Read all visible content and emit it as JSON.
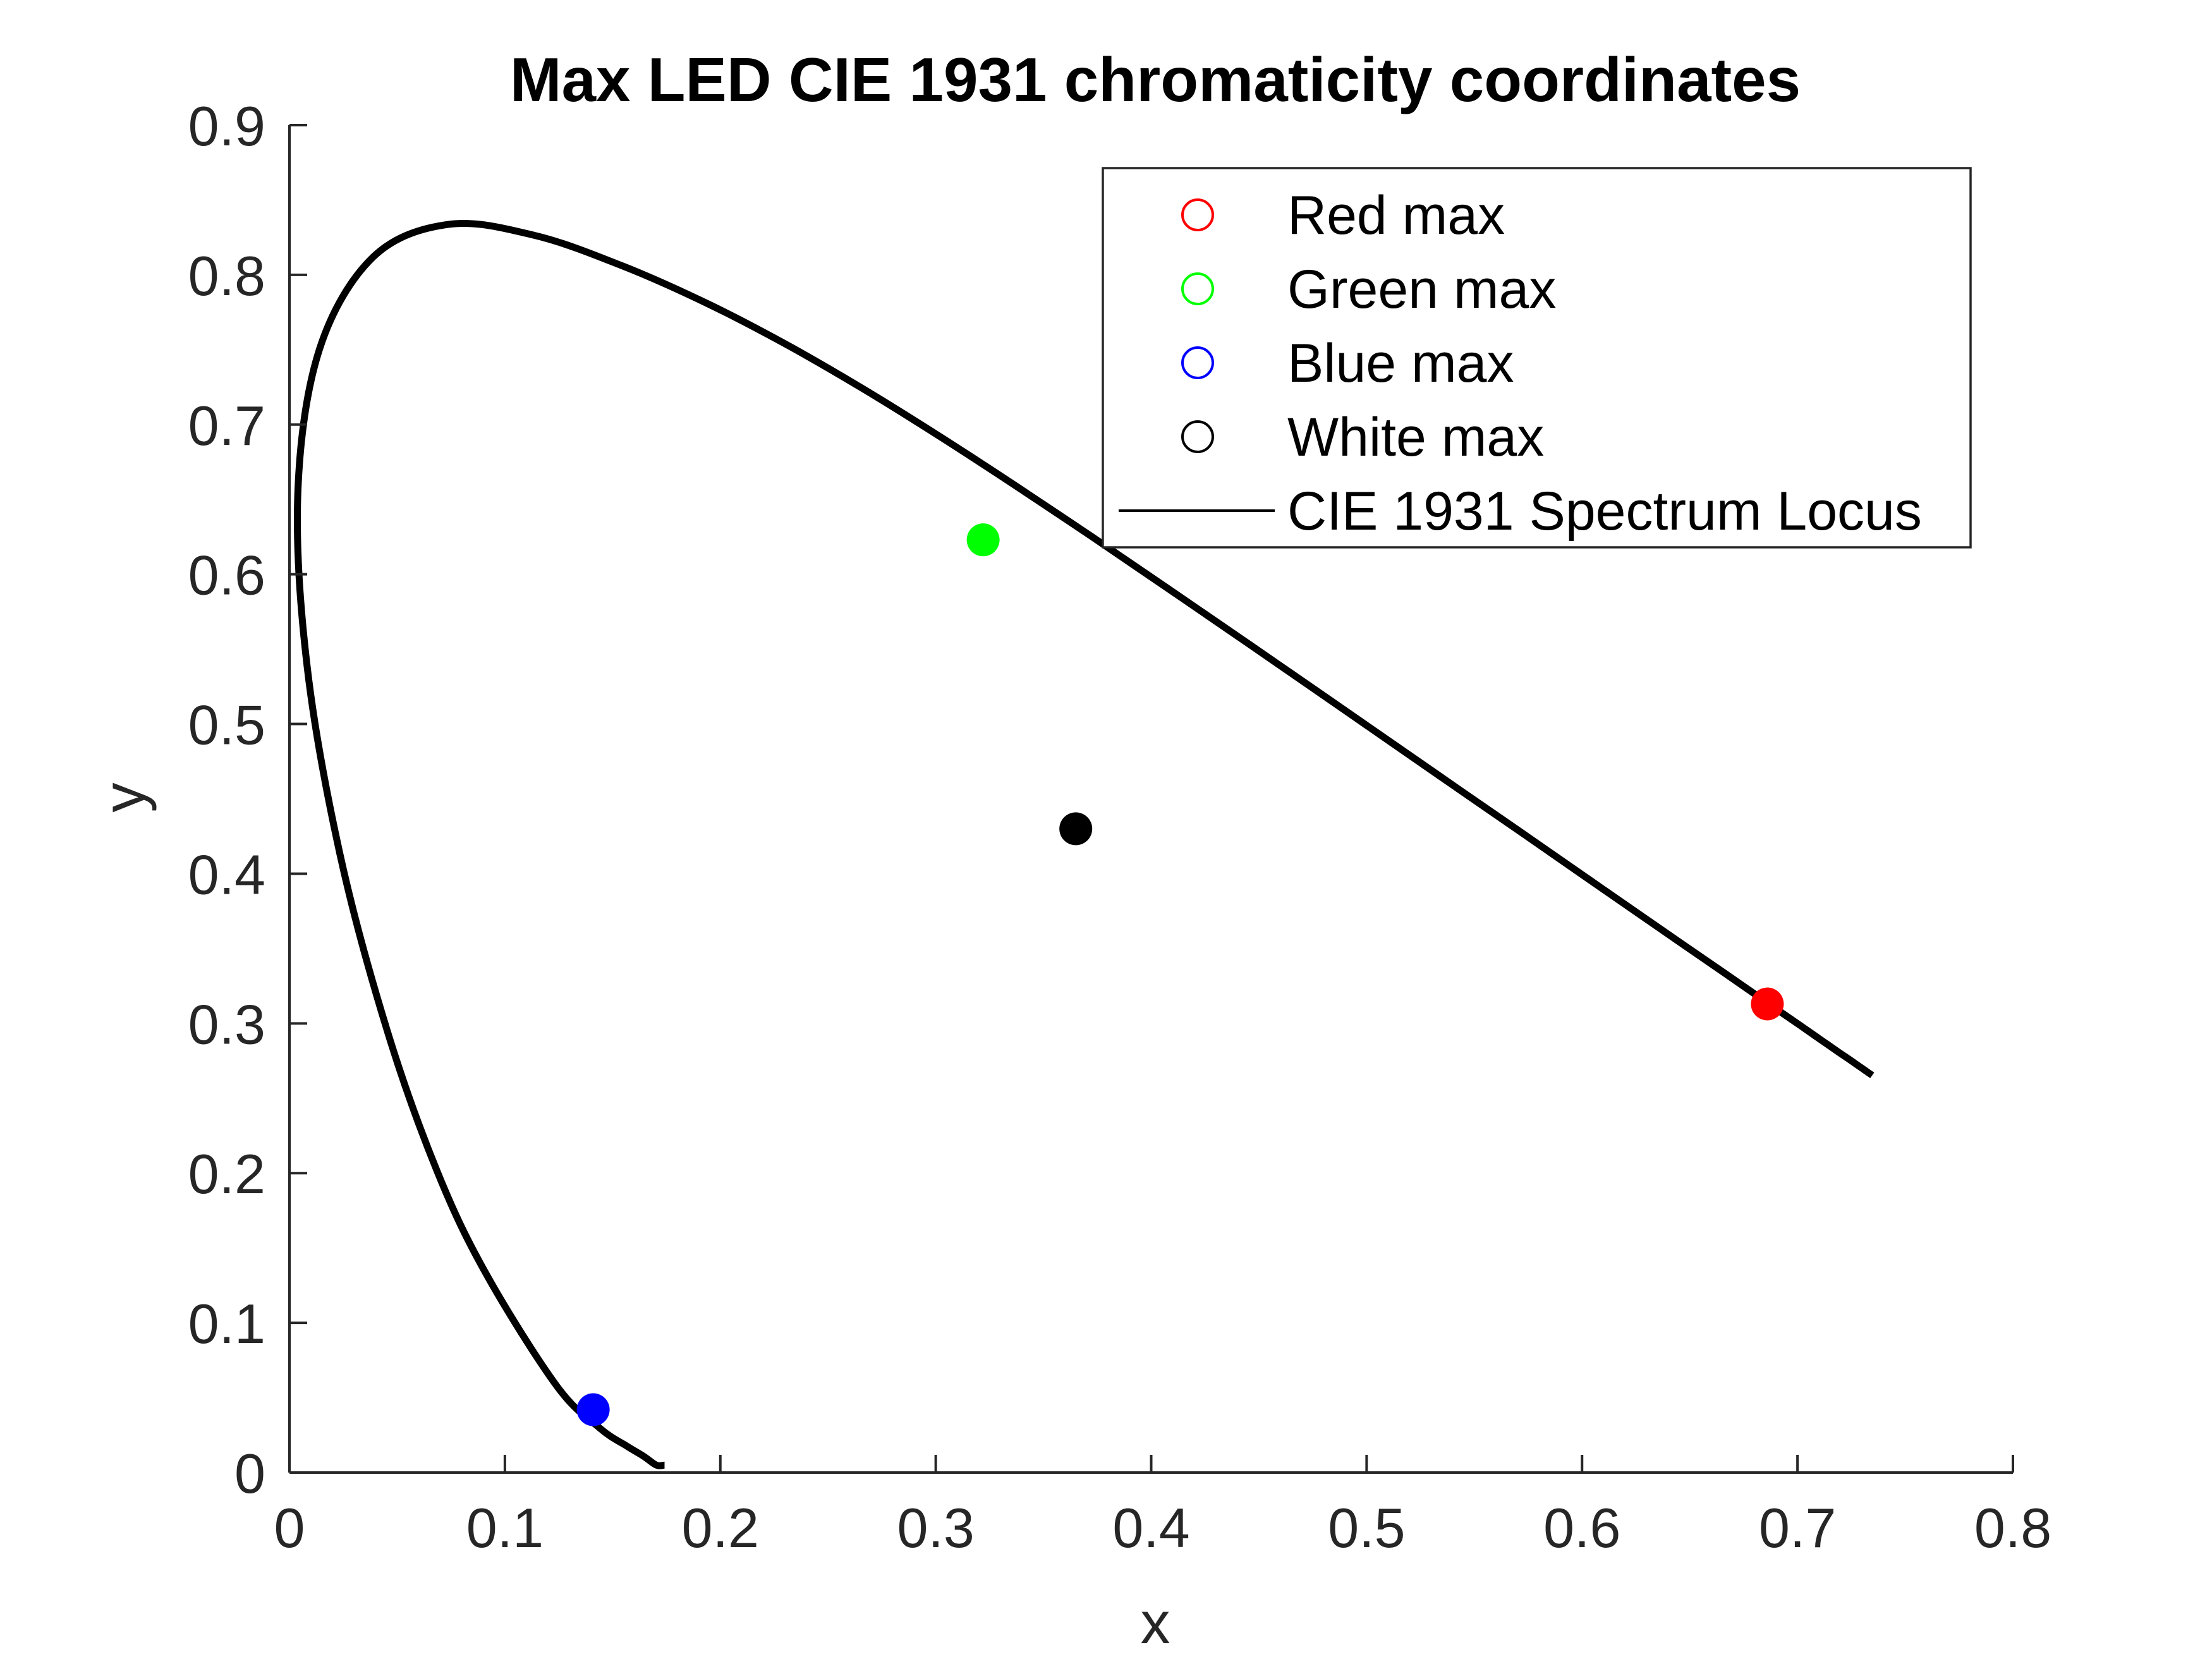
{
  "chart_data": {
    "type": "scatter",
    "title": "Max LED CIE 1931 chromaticity coordinates",
    "xlabel": "x",
    "ylabel": "y",
    "xlim": [
      0,
      0.8
    ],
    "ylim": [
      0,
      0.9
    ],
    "xticks": [
      "0",
      "0.1",
      "0.2",
      "0.3",
      "0.4",
      "0.5",
      "0.6",
      "0.7",
      "0.8"
    ],
    "yticks": [
      "0",
      "0.1",
      "0.2",
      "0.3",
      "0.4",
      "0.5",
      "0.6",
      "0.7",
      "0.8",
      "0.9"
    ],
    "grid": false,
    "legend_position": "top-right",
    "series": [
      {
        "name": "Red max",
        "color": "#ff0000",
        "x": [
          0.686
        ],
        "y": [
          0.313
        ]
      },
      {
        "name": "Green max",
        "color": "#00ff00",
        "x": [
          0.322
        ],
        "y": [
          0.623
        ]
      },
      {
        "name": "Blue max",
        "color": "#0000ff",
        "x": [
          0.141
        ],
        "y": [
          0.042
        ]
      },
      {
        "name": "White max",
        "color": "#000000",
        "x": [
          0.365
        ],
        "y": [
          0.43
        ]
      }
    ],
    "locus": {
      "name": "CIE 1931 Spectrum Locus",
      "color": "#000000",
      "x": [
        0.1741,
        0.1703,
        0.1644,
        0.1566,
        0.144,
        0.1241,
        0.0913,
        0.0687,
        0.0454,
        0.0235,
        0.0082,
        0.0039,
        0.0139,
        0.0389,
        0.0743,
        0.1142,
        0.1547,
        0.1929,
        0.2296,
        0.2658,
        0.3016,
        0.3373,
        0.3731,
        0.4087,
        0.4441,
        0.4788,
        0.5125,
        0.5448,
        0.5752,
        0.6029,
        0.627,
        0.6482,
        0.6658,
        0.6801,
        0.6915,
        0.7006,
        0.7079,
        0.714,
        0.719,
        0.723,
        0.726,
        0.7283,
        0.73,
        0.7311,
        0.732,
        0.7334,
        0.7347
      ],
      "y": [
        0.005,
        0.005,
        0.0109,
        0.0177,
        0.0297,
        0.0578,
        0.1327,
        0.2007,
        0.295,
        0.4127,
        0.5384,
        0.6548,
        0.7502,
        0.812,
        0.8338,
        0.8262,
        0.8059,
        0.7816,
        0.7543,
        0.7243,
        0.6923,
        0.6589,
        0.6245,
        0.5896,
        0.5547,
        0.5202,
        0.4866,
        0.4544,
        0.4242,
        0.3965,
        0.3725,
        0.3514,
        0.334,
        0.3197,
        0.3083,
        0.2993,
        0.292,
        0.2859,
        0.2809,
        0.277,
        0.274,
        0.2717,
        0.27,
        0.2689,
        0.268,
        0.2666,
        0.2653
      ]
    }
  }
}
